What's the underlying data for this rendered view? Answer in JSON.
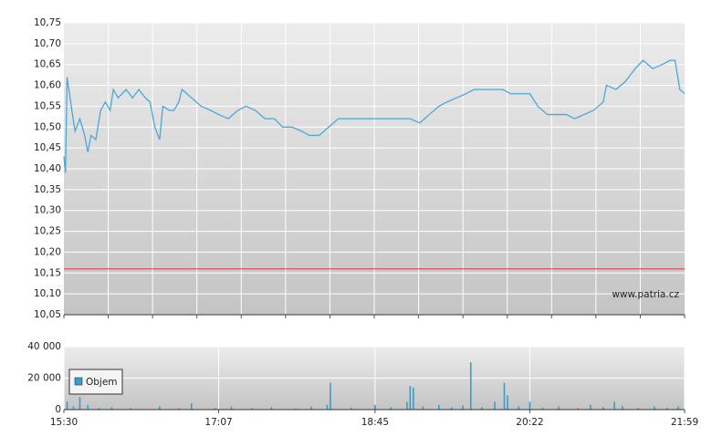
{
  "chart_data": [
    {
      "type": "line",
      "color": "#4aa8d8",
      "xlim": [
        "15:30",
        "21:59"
      ],
      "ylim": [
        10.05,
        10.75
      ],
      "yticks": [
        {
          "value": 10.05,
          "label": "10,05"
        },
        {
          "value": 10.1,
          "label": "10,10"
        },
        {
          "value": 10.15,
          "label": "10,15"
        },
        {
          "value": 10.2,
          "label": "10,20"
        },
        {
          "value": 10.25,
          "label": "10,25"
        },
        {
          "value": 10.3,
          "label": "10,30"
        },
        {
          "value": 10.35,
          "label": "10,35"
        },
        {
          "value": 10.4,
          "label": "10,40"
        },
        {
          "value": 10.45,
          "label": "10,45"
        },
        {
          "value": 10.5,
          "label": "10,50"
        },
        {
          "value": 10.55,
          "label": "10,55"
        },
        {
          "value": 10.6,
          "label": "10,60"
        },
        {
          "value": 10.65,
          "label": "10,65"
        },
        {
          "value": 10.7,
          "label": "10,70"
        },
        {
          "value": 10.75,
          "label": "10,75"
        }
      ],
      "reference_line": 10.16,
      "reference_color": "#e05050",
      "watermark": "www.patria.cz",
      "x": [
        "15:30",
        "15:31",
        "15:32",
        "15:35",
        "15:37",
        "15:40",
        "15:43",
        "15:45",
        "15:47",
        "15:50",
        "15:53",
        "15:56",
        "15:59",
        "16:01",
        "16:04",
        "16:09",
        "16:13",
        "16:17",
        "16:21",
        "16:24",
        "16:27",
        "16:30",
        "16:32",
        "16:36",
        "16:39",
        "16:42",
        "16:44",
        "16:50",
        "16:56",
        "17:02",
        "17:07",
        "17:13",
        "17:19",
        "17:24",
        "17:30",
        "17:36",
        "17:42",
        "17:47",
        "17:53",
        "17:59",
        "18:04",
        "18:10",
        "18:16",
        "18:22",
        "18:27",
        "18:33",
        "18:39",
        "18:45",
        "18:50",
        "18:56",
        "19:02",
        "19:07",
        "19:13",
        "19:19",
        "19:25",
        "19:30",
        "19:36",
        "19:42",
        "19:47",
        "19:53",
        "19:59",
        "20:05",
        "20:10",
        "20:16",
        "20:22",
        "20:27",
        "20:33",
        "20:39",
        "20:45",
        "20:50",
        "20:56",
        "21:02",
        "21:08",
        "21:10",
        "21:16",
        "21:22",
        "21:28",
        "21:33",
        "21:39",
        "21:45",
        "21:50",
        "21:53",
        "21:56",
        "21:59"
      ],
      "values": [
        10.43,
        10.39,
        10.62,
        10.54,
        10.49,
        10.52,
        10.48,
        10.44,
        10.48,
        10.47,
        10.54,
        10.56,
        10.54,
        10.59,
        10.57,
        10.59,
        10.57,
        10.59,
        10.57,
        10.56,
        10.5,
        10.47,
        10.55,
        10.54,
        10.54,
        10.56,
        10.59,
        10.57,
        10.55,
        10.54,
        10.53,
        10.52,
        10.54,
        10.55,
        10.54,
        10.52,
        10.52,
        10.5,
        10.5,
        10.49,
        10.48,
        10.48,
        10.5,
        10.52,
        10.52,
        10.52,
        10.52,
        10.52,
        10.52,
        10.52,
        10.52,
        10.52,
        10.51,
        10.53,
        10.55,
        10.56,
        10.57,
        10.58,
        10.59,
        10.59,
        10.59,
        10.59,
        10.58,
        10.58,
        10.58,
        10.55,
        10.53,
        10.53,
        10.53,
        10.52,
        10.53,
        10.54,
        10.56,
        10.6,
        10.59,
        10.61,
        10.64,
        10.66,
        10.64,
        10.65,
        10.66,
        10.66,
        10.59,
        10.58
      ]
    },
    {
      "type": "bar",
      "xlim": [
        "15:30",
        "21:59"
      ],
      "xticks": [
        "15:30",
        "17:07",
        "18:45",
        "20:22",
        "21:59"
      ],
      "ylim": [
        0,
        40000
      ],
      "yticks": [
        0,
        {
          "value": 20000,
          "label": "20 000"
        },
        {
          "value": 40000,
          "label": "40 000"
        }
      ],
      "series": [
        {
          "name": "Objem",
          "color": "#3a9ccc",
          "x": [
            "15:32",
            "15:36",
            "15:40",
            "15:45",
            "15:52",
            "16:00",
            "16:12",
            "16:30",
            "16:42",
            "16:50",
            "17:05",
            "17:15",
            "17:28",
            "17:40",
            "17:55",
            "18:05",
            "18:15",
            "18:17",
            "18:30",
            "18:45",
            "18:55",
            "19:05",
            "19:07",
            "19:09",
            "19:15",
            "19:25",
            "19:33",
            "19:40",
            "19:45",
            "19:52",
            "20:00",
            "20:06",
            "20:08",
            "20:15",
            "20:22",
            "20:30",
            "20:40",
            "20:52",
            "21:00",
            "21:08",
            "21:15",
            "21:20",
            "21:30",
            "21:40",
            "21:48",
            "21:55"
          ],
          "values": [
            5000,
            2000,
            8000,
            3000,
            1000,
            1500,
            1000,
            2000,
            1000,
            4000,
            1000,
            2000,
            1000,
            1500,
            800,
            2000,
            3000,
            17000,
            1200,
            3000,
            1500,
            5000,
            15000,
            14000,
            2000,
            3000,
            1500,
            2500,
            30000,
            1500,
            5000,
            17000,
            9000,
            2000,
            5000,
            1200,
            2000,
            1000,
            3000,
            1500,
            5000,
            2500,
            1000,
            2000,
            1000,
            2000
          ]
        }
      ]
    }
  ]
}
